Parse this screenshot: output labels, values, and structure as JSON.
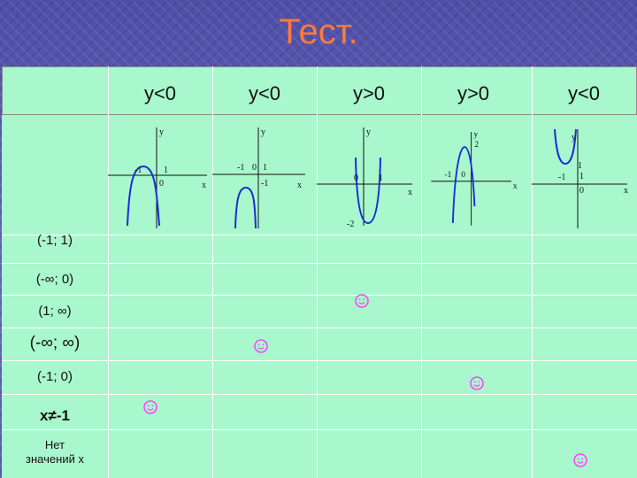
{
  "title": "Тест.",
  "columns": [
    {
      "header": "y<0",
      "labels": [
        "y",
        "-1",
        "1",
        "0",
        "x"
      ]
    },
    {
      "header": "y<0",
      "labels": [
        "y",
        "-1",
        "0",
        "1",
        "-1",
        "x"
      ]
    },
    {
      "header": "y>0",
      "labels": [
        "y",
        "0",
        "1",
        "x",
        "-2"
      ]
    },
    {
      "header": "y>0",
      "labels": [
        "y",
        "2",
        "-1",
        "0",
        "x"
      ]
    },
    {
      "header": "y<0",
      "labels": [
        "y",
        "1",
        "-1",
        "1",
        "0",
        "x"
      ]
    }
  ],
  "rows": [
    {
      "label": "(-1; 1)"
    },
    {
      "label": "(-∞; 0)"
    },
    {
      "label": "(1; ∞)"
    },
    {
      "label": "(-∞; ∞)"
    },
    {
      "label": "(-1; 0)"
    },
    {
      "label": "x≠-1"
    },
    {
      "label": "Нет значений x"
    }
  ],
  "answers": [
    {
      "column": 1,
      "row": 6
    },
    {
      "column": 2,
      "row": 4
    },
    {
      "column": 3,
      "row": 2
    },
    {
      "column": 4,
      "row": 5
    },
    {
      "column": 5,
      "row": 7
    }
  ],
  "colors": {
    "title": "#ff7a3a",
    "table_bg": "#a9f7cc",
    "smiley": "#ff44ff",
    "curve": "#1a2fd6"
  },
  "icons": {
    "mark": "smiley-icon"
  }
}
